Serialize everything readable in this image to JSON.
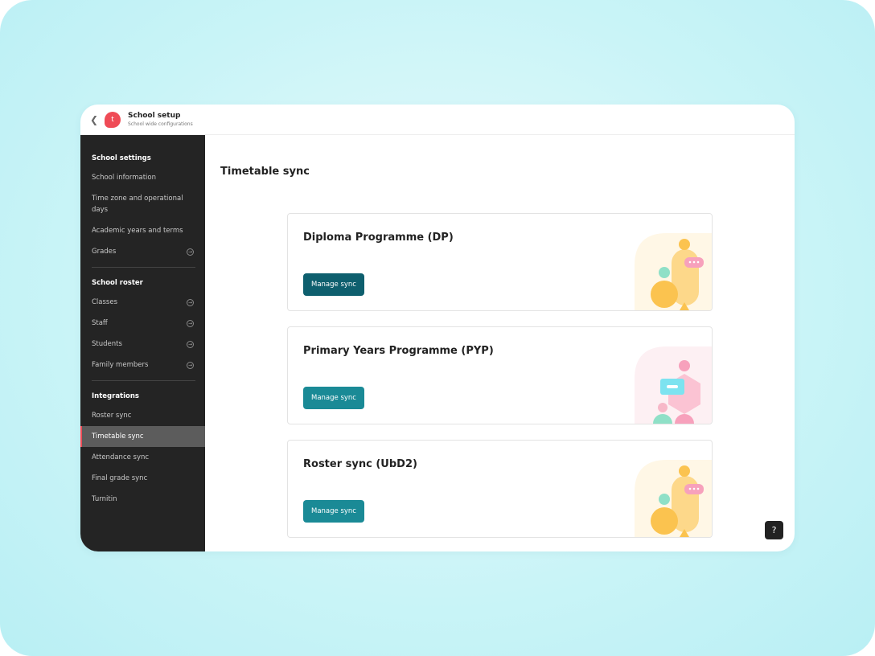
{
  "header": {
    "title": "School setup",
    "subtitle": "School wide configurations",
    "logo_letter": "t"
  },
  "sidebar": {
    "sections": [
      {
        "title": "School settings",
        "items": [
          {
            "label": "School information"
          },
          {
            "label": "Time zone and operational days"
          },
          {
            "label": "Academic years and terms"
          },
          {
            "label": "Grades",
            "arrow": true
          }
        ]
      },
      {
        "title": "School roster",
        "items": [
          {
            "label": "Classes",
            "arrow": true
          },
          {
            "label": "Staff",
            "arrow": true
          },
          {
            "label": "Students",
            "arrow": true
          },
          {
            "label": "Family members",
            "arrow": true
          }
        ]
      },
      {
        "title": "Integrations",
        "items": [
          {
            "label": "Roster sync"
          },
          {
            "label": "Timetable sync",
            "selected": true
          },
          {
            "label": "Attendance sync"
          },
          {
            "label": "Final grade sync"
          },
          {
            "label": "Turnitin"
          }
        ]
      }
    ]
  },
  "main": {
    "title": "Timetable sync",
    "cards": [
      {
        "title": "Diploma Programme (DP)",
        "button": "Manage sync",
        "theme": "yellow"
      },
      {
        "title": "Primary Years Programme (PYP)",
        "button": "Manage sync",
        "theme": "pink"
      },
      {
        "title": "Roster sync (UbD2)",
        "button": "Manage sync",
        "theme": "yellow"
      }
    ]
  },
  "help_label": "?"
}
